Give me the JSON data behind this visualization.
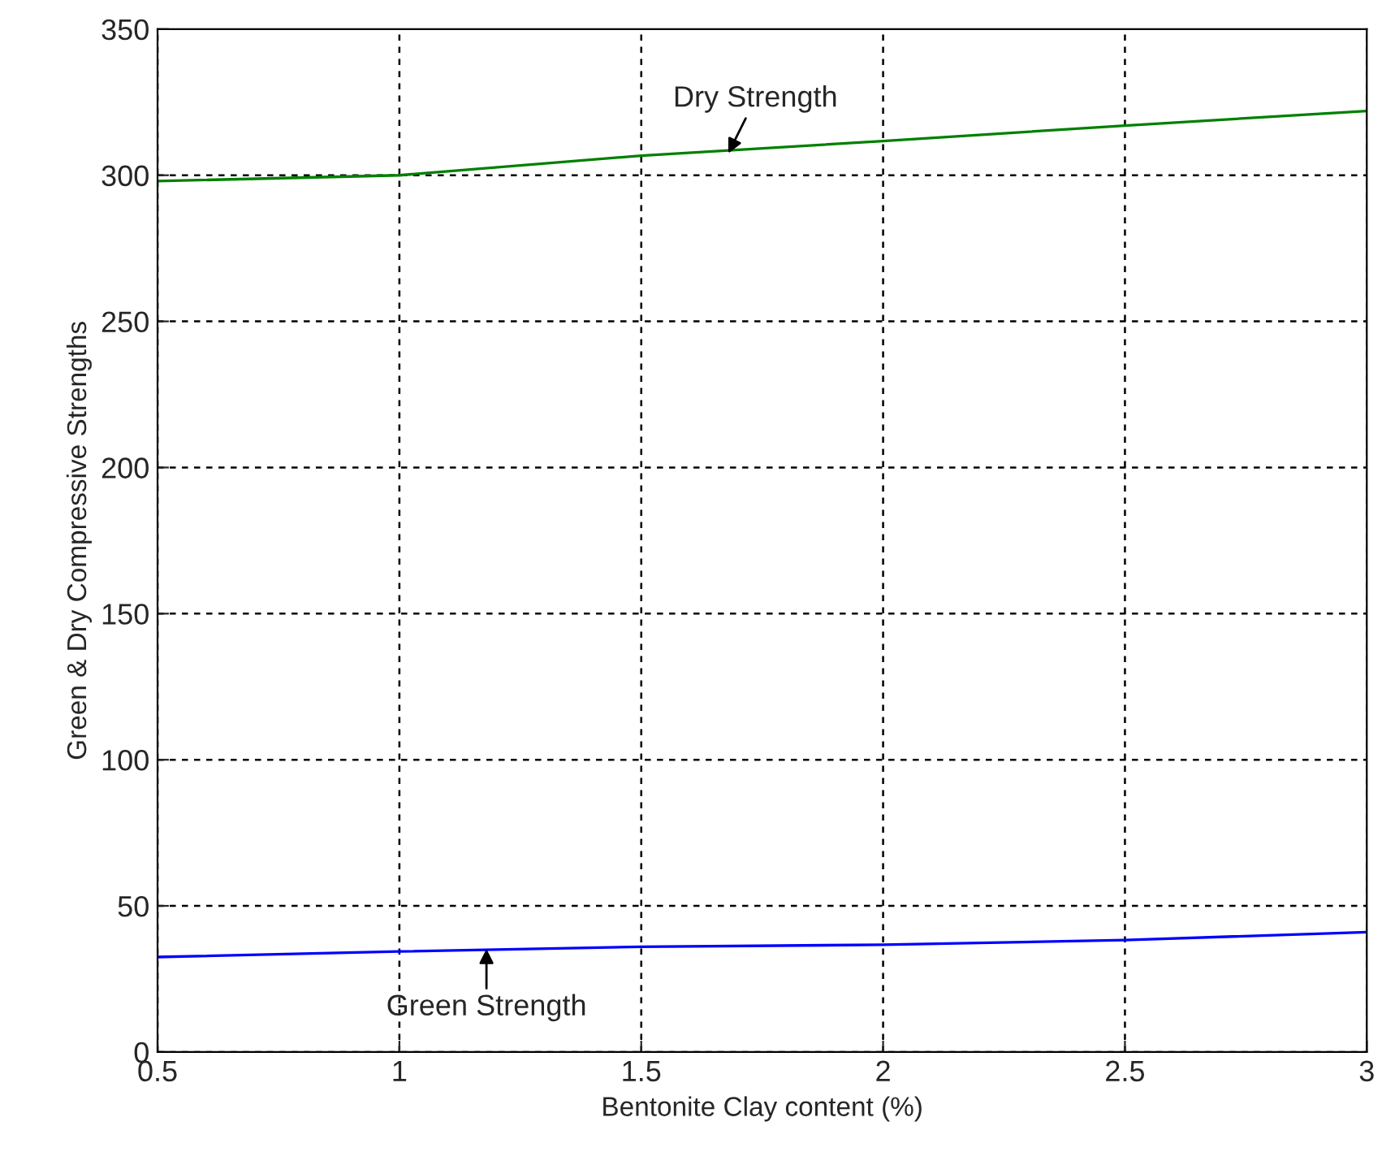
{
  "chart_data": {
    "type": "line",
    "xlabel": "Bentonite Clay content (%)",
    "ylabel": "Green & Dry Compressive Strengths",
    "x": [
      0.5,
      1,
      1.5,
      2,
      2.5,
      3
    ],
    "series": [
      {
        "color": "#008000",
        "values": [
          298,
          300,
          306.7,
          311.7,
          317,
          322
        ]
      },
      {
        "color": "#0000ff",
        "values": [
          32.5,
          34.4,
          36,
          36.7,
          38.3,
          41
        ]
      }
    ],
    "annotations": [
      {
        "text": "Dry Strength",
        "x": 1.68,
        "y": 307.5
      },
      {
        "text": "Green Strength",
        "x": 1.18,
        "y": 35.3
      }
    ],
    "xlim": [
      0.5,
      3
    ],
    "xticks": [
      0.5,
      1,
      1.5,
      2,
      2.5,
      3
    ],
    "ylim": [
      0,
      350
    ],
    "yticks": [
      0,
      50,
      100,
      150,
      200,
      250,
      300,
      350
    ],
    "grid": true,
    "legend": false
  }
}
